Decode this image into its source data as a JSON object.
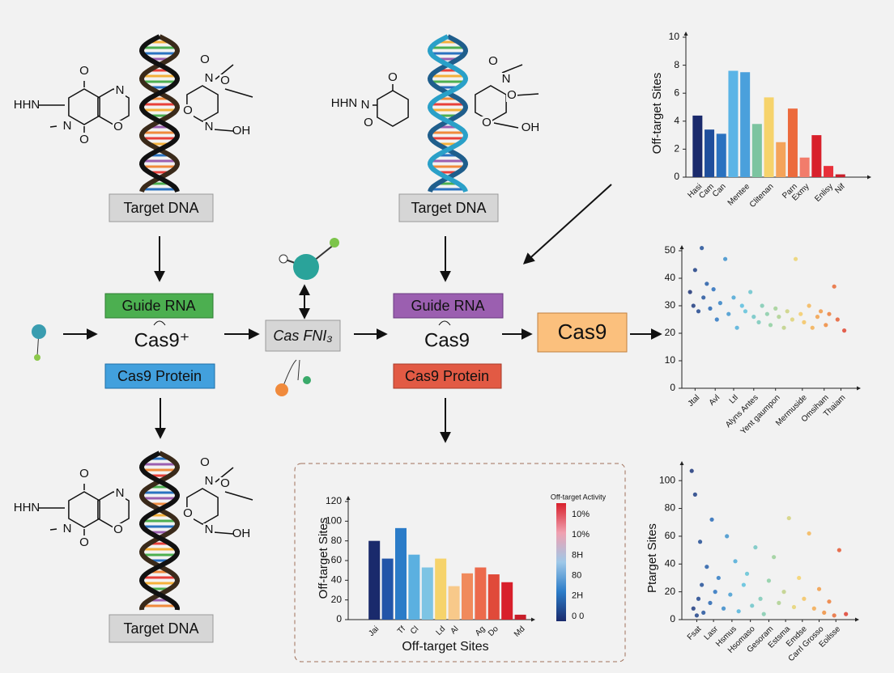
{
  "diagram": {
    "target_dna": [
      "Target DNA",
      "Target DNA",
      "Target DNA"
    ],
    "guide_rna": [
      "Guide RNA",
      "Guide RNA"
    ],
    "cas9_left": "Cas9⁺",
    "cas9_mid": "Cas9",
    "cas9_protein": [
      "Cas9 Protein",
      "Cas9 Protein"
    ],
    "cas_fni": "Cas FNI₃",
    "cas9_box": "Cas9",
    "molecules": [
      {
        "atoms": [
          "HHN",
          "O",
          "N",
          "N",
          "O",
          "O"
        ]
      },
      {
        "atoms": [
          "O",
          "N",
          "O",
          "O",
          "N",
          "OH"
        ]
      },
      {
        "atoms": [
          "HHN",
          "N",
          "O",
          "O"
        ]
      },
      {
        "atoms": [
          "O",
          "N",
          "O",
          "O",
          "OH"
        ]
      },
      {
        "atoms": [
          "HHN",
          "O",
          "N",
          "N",
          "O",
          "O"
        ]
      },
      {
        "atoms": [
          "O",
          "N",
          "O",
          "O",
          "N",
          "OH"
        ]
      }
    ]
  },
  "chart_data": [
    {
      "type": "bar",
      "ylabel": "Off-target Sites",
      "categories": [
        "Hasi",
        "Cam",
        "Can",
        null,
        "Mentee",
        null,
        "Clitenan",
        null,
        "Parn",
        "Exmy",
        null,
        "Enlisy",
        "Nif"
      ],
      "values": [
        4.4,
        3.4,
        3.1,
        7.6,
        7.5,
        3.8,
        5.7,
        2.5,
        4.9,
        1.4,
        3.0,
        0.8,
        0.2
      ],
      "colors": [
        "#1a2a6c",
        "#1f4e9c",
        "#2a72c0",
        "#5bb4e6",
        "#4aa0dc",
        "#7cc4a0",
        "#f6d36b",
        "#f4a35a",
        "#ec6a3c",
        "#f27c6b",
        "#d8202b",
        "#e8303a",
        "#c81e2a"
      ],
      "ylim": [
        0,
        10
      ],
      "yticks": [
        0,
        2,
        4,
        6,
        8,
        10
      ]
    },
    {
      "type": "scatter",
      "x": [
        0.2,
        0.4,
        0.5,
        0.7,
        0.9,
        1.0,
        1.2,
        1.4,
        1.6,
        1.8,
        2.0,
        2.3,
        2.5,
        2.8,
        3.0,
        3.3,
        3.5,
        3.8,
        4.0,
        4.3,
        4.5,
        4.8,
        5.0,
        5.3,
        5.5,
        5.8,
        6.0,
        6.3,
        6.5,
        6.8,
        7.0,
        7.3,
        7.5,
        7.8,
        8.0,
        8.3,
        8.5,
        8.8,
        9.0,
        9.4
      ],
      "y": [
        35,
        30,
        43,
        28,
        51,
        33,
        38,
        29,
        36,
        25,
        31,
        47,
        27,
        33,
        22,
        30,
        28,
        35,
        26,
        24,
        30,
        27,
        23,
        29,
        26,
        22,
        28,
        25,
        47,
        27,
        24,
        30,
        22,
        26,
        28,
        23,
        27,
        37,
        25,
        21
      ],
      "colormap": [
        "#1a2a6c",
        "#2a72c0",
        "#5bc0e0",
        "#8fd0a0",
        "#f6d36b",
        "#f08a3c",
        "#d8202b"
      ],
      "xlim": [
        0,
        10
      ],
      "xticks": [
        {
          "value": 0.5,
          "label": "Jtal"
        },
        {
          "value": 1.7,
          "label": "Avl"
        },
        {
          "value": 2.8,
          "label": "Ltl"
        },
        {
          "value": 4.0,
          "label": "Alyns Antes"
        },
        {
          "value": 5.3,
          "label": "Yent gaumpon"
        },
        {
          "value": 6.9,
          "label": "Mermuside"
        },
        {
          "value": 8.2,
          "label": "Omsiham"
        },
        {
          "value": 9.2,
          "label": "Thaiam"
        }
      ],
      "ylim": [
        0,
        50
      ],
      "yticks": [
        0,
        10,
        20,
        30,
        40,
        50
      ]
    },
    {
      "type": "bar",
      "ylabel": "Off-target Sites",
      "xlabel": "Off-target Sites",
      "categories": [
        "Jai",
        null,
        "Tf",
        "Cl",
        null,
        "Ld",
        "Al",
        null,
        "Ag",
        "Do",
        null,
        "Md"
      ],
      "values": [
        80,
        62,
        93,
        66,
        53,
        62,
        34,
        47,
        53,
        46,
        38,
        5
      ],
      "colors": [
        "#1a2a6c",
        "#2255a8",
        "#2b7cc8",
        "#5bb0e0",
        "#7dc4e4",
        "#f6d36b",
        "#f8c98a",
        "#f08a5c",
        "#ec6a4c",
        "#e04a3a",
        "#d8202b",
        "#c81e2a"
      ],
      "ylim": [
        0,
        120
      ],
      "yticks": [
        0,
        20,
        40,
        60,
        80,
        100,
        120
      ],
      "colorbar": {
        "title": "Off-target Activity",
        "labels": [
          "10%",
          "10%",
          "8H",
          "80",
          "2H",
          "0 0"
        ],
        "colors": [
          "#d8202b",
          "#f0a0b0",
          "#9ec8e8",
          "#2b7cc8",
          "#1a2a6c"
        ]
      }
    },
    {
      "type": "scatter",
      "ylabel": "Ptarget Sites",
      "x": [
        0.3,
        0.4,
        0.5,
        0.6,
        0.7,
        0.8,
        0.9,
        1.0,
        1.2,
        1.4,
        1.5,
        1.7,
        1.9,
        2.2,
        2.4,
        2.6,
        2.9,
        3.1,
        3.4,
        3.6,
        3.9,
        4.1,
        4.4,
        4.6,
        4.9,
        5.2,
        5.5,
        5.8,
        6.1,
        6.4,
        6.7,
        7.0,
        7.3,
        7.6,
        7.9,
        8.2,
        8.5,
        8.8,
        9.1,
        9.5
      ],
      "y": [
        107,
        8,
        90,
        3,
        15,
        56,
        25,
        5,
        38,
        12,
        72,
        20,
        30,
        8,
        60,
        18,
        42,
        6,
        25,
        33,
        10,
        52,
        15,
        4,
        28,
        45,
        12,
        20,
        73,
        9,
        30,
        15,
        62,
        8,
        22,
        5,
        13,
        3,
        50,
        4
      ],
      "colormap": [
        "#1a2a6c",
        "#2a72c0",
        "#5bc0e0",
        "#8fd0a0",
        "#f6d36b",
        "#f08a3c",
        "#d8202b"
      ],
      "xlim": [
        0,
        10
      ],
      "xticks": [
        {
          "value": 0.6,
          "label": "Fsat"
        },
        {
          "value": 1.6,
          "label": "Lasr"
        },
        {
          "value": 2.7,
          "label": "Hsmus"
        },
        {
          "value": 3.8,
          "label": "Hsomaso"
        },
        {
          "value": 4.9,
          "label": "Gesoram"
        },
        {
          "value": 5.9,
          "label": "Estsma"
        },
        {
          "value": 6.9,
          "label": "Emdse"
        },
        {
          "value": 7.9,
          "label": "Carrl Grosso"
        },
        {
          "value": 8.9,
          "label": "Eoilsse"
        }
      ],
      "ylim": [
        0,
        110
      ],
      "yticks": [
        0,
        20,
        40,
        60,
        80,
        100
      ]
    }
  ]
}
